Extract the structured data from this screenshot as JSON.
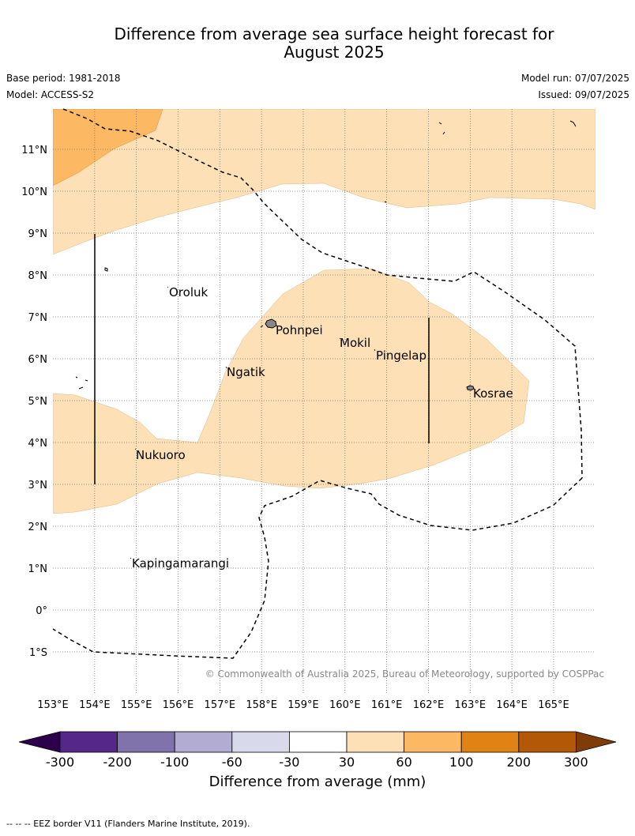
{
  "header": {
    "title_line1": "Difference from average sea surface height forecast for",
    "title_line2": "August 2025",
    "base_period": "Base period: 1981-2018",
    "model": "Model: ACCESS-S2",
    "model_run": "Model run: 07/07/2025",
    "issued": "Issued: 09/07/2025"
  },
  "map": {
    "lon_ticks": [
      "153°E",
      "154°E",
      "155°E",
      "156°E",
      "157°E",
      "158°E",
      "159°E",
      "160°E",
      "161°E",
      "162°E",
      "163°E",
      "164°E",
      "165°E"
    ],
    "lat_ticks": [
      "11°N",
      "10°N",
      "9°N",
      "8°N",
      "7°N",
      "6°N",
      "5°N",
      "4°N",
      "3°N",
      "2°N",
      "1°N",
      "0°",
      "1°S"
    ],
    "places": [
      "Oroluk",
      "Pohnpei",
      "Mokil",
      "Pingelap",
      "Ngatik",
      "Kosrae",
      "Nukuoro",
      "Kapingamarangi"
    ],
    "copyright": "© Commonwealth of Australia 2025, Bureau of Meteorology, supported by COSPPac",
    "colors": {
      "band_30_60": "#fde0b5",
      "band_60_100": "#fdb863",
      "eez_border": "#000000",
      "land": "#888888"
    }
  },
  "colorbar": {
    "ticks": [
      "-300",
      "-200",
      "-100",
      "-60",
      "-30",
      "30",
      "60",
      "100",
      "200",
      "300"
    ],
    "colors": [
      "#2d004b",
      "#542788",
      "#8073ac",
      "#b2abd2",
      "#d8daeb",
      "#ffffff",
      "#fee0b6",
      "#fdb863",
      "#e08214",
      "#b35806",
      "#7f3b08"
    ],
    "label": "Difference from average (mm)"
  },
  "footnote": "--  --  -- EEZ border V11 (Flanders Marine Institute, 2019)."
}
